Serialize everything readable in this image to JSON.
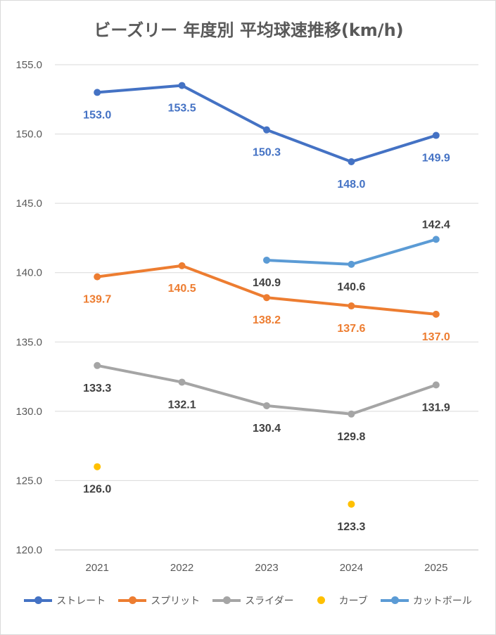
{
  "chart_data": {
    "type": "line",
    "title": "ビーズリー 年度別 平均球速推移(km/h)",
    "categories": [
      "2021",
      "2022",
      "2023",
      "2024",
      "2025"
    ],
    "ylim": [
      120,
      155
    ],
    "yticks": [
      "155.0",
      "150.0",
      "145.0",
      "140.0",
      "135.0",
      "130.0",
      "125.0",
      "120.0"
    ],
    "grid": true,
    "legend_position": "bottom",
    "series": [
      {
        "name": "ストレート",
        "color": "#4472c4",
        "values": [
          153.0,
          153.5,
          150.3,
          148.0,
          149.9
        ],
        "labels": [
          "153.0",
          "153.5",
          "150.3",
          "148.0",
          "149.9"
        ]
      },
      {
        "name": "スプリット",
        "color": "#ed7d31",
        "values": [
          139.7,
          140.5,
          138.2,
          137.6,
          137.0
        ],
        "labels": [
          "139.7",
          "140.5",
          "138.2",
          "137.6",
          "137.0"
        ]
      },
      {
        "name": "スライダー",
        "color": "#a5a5a5",
        "values": [
          133.3,
          132.1,
          130.4,
          129.8,
          131.9
        ],
        "labels": [
          "133.3",
          "132.1",
          "130.4",
          "129.8",
          "131.9"
        ]
      },
      {
        "name": "カーブ",
        "color": "#ffc000",
        "values": [
          126.0,
          null,
          null,
          123.3,
          null
        ],
        "labels": [
          "126.0",
          null,
          null,
          "123.3",
          null
        ]
      },
      {
        "name": "カットボール",
        "color": "#5b9bd5",
        "values": [
          null,
          null,
          140.9,
          140.6,
          142.4
        ],
        "labels": [
          null,
          null,
          "140.9",
          "140.6",
          "142.4"
        ]
      }
    ]
  }
}
